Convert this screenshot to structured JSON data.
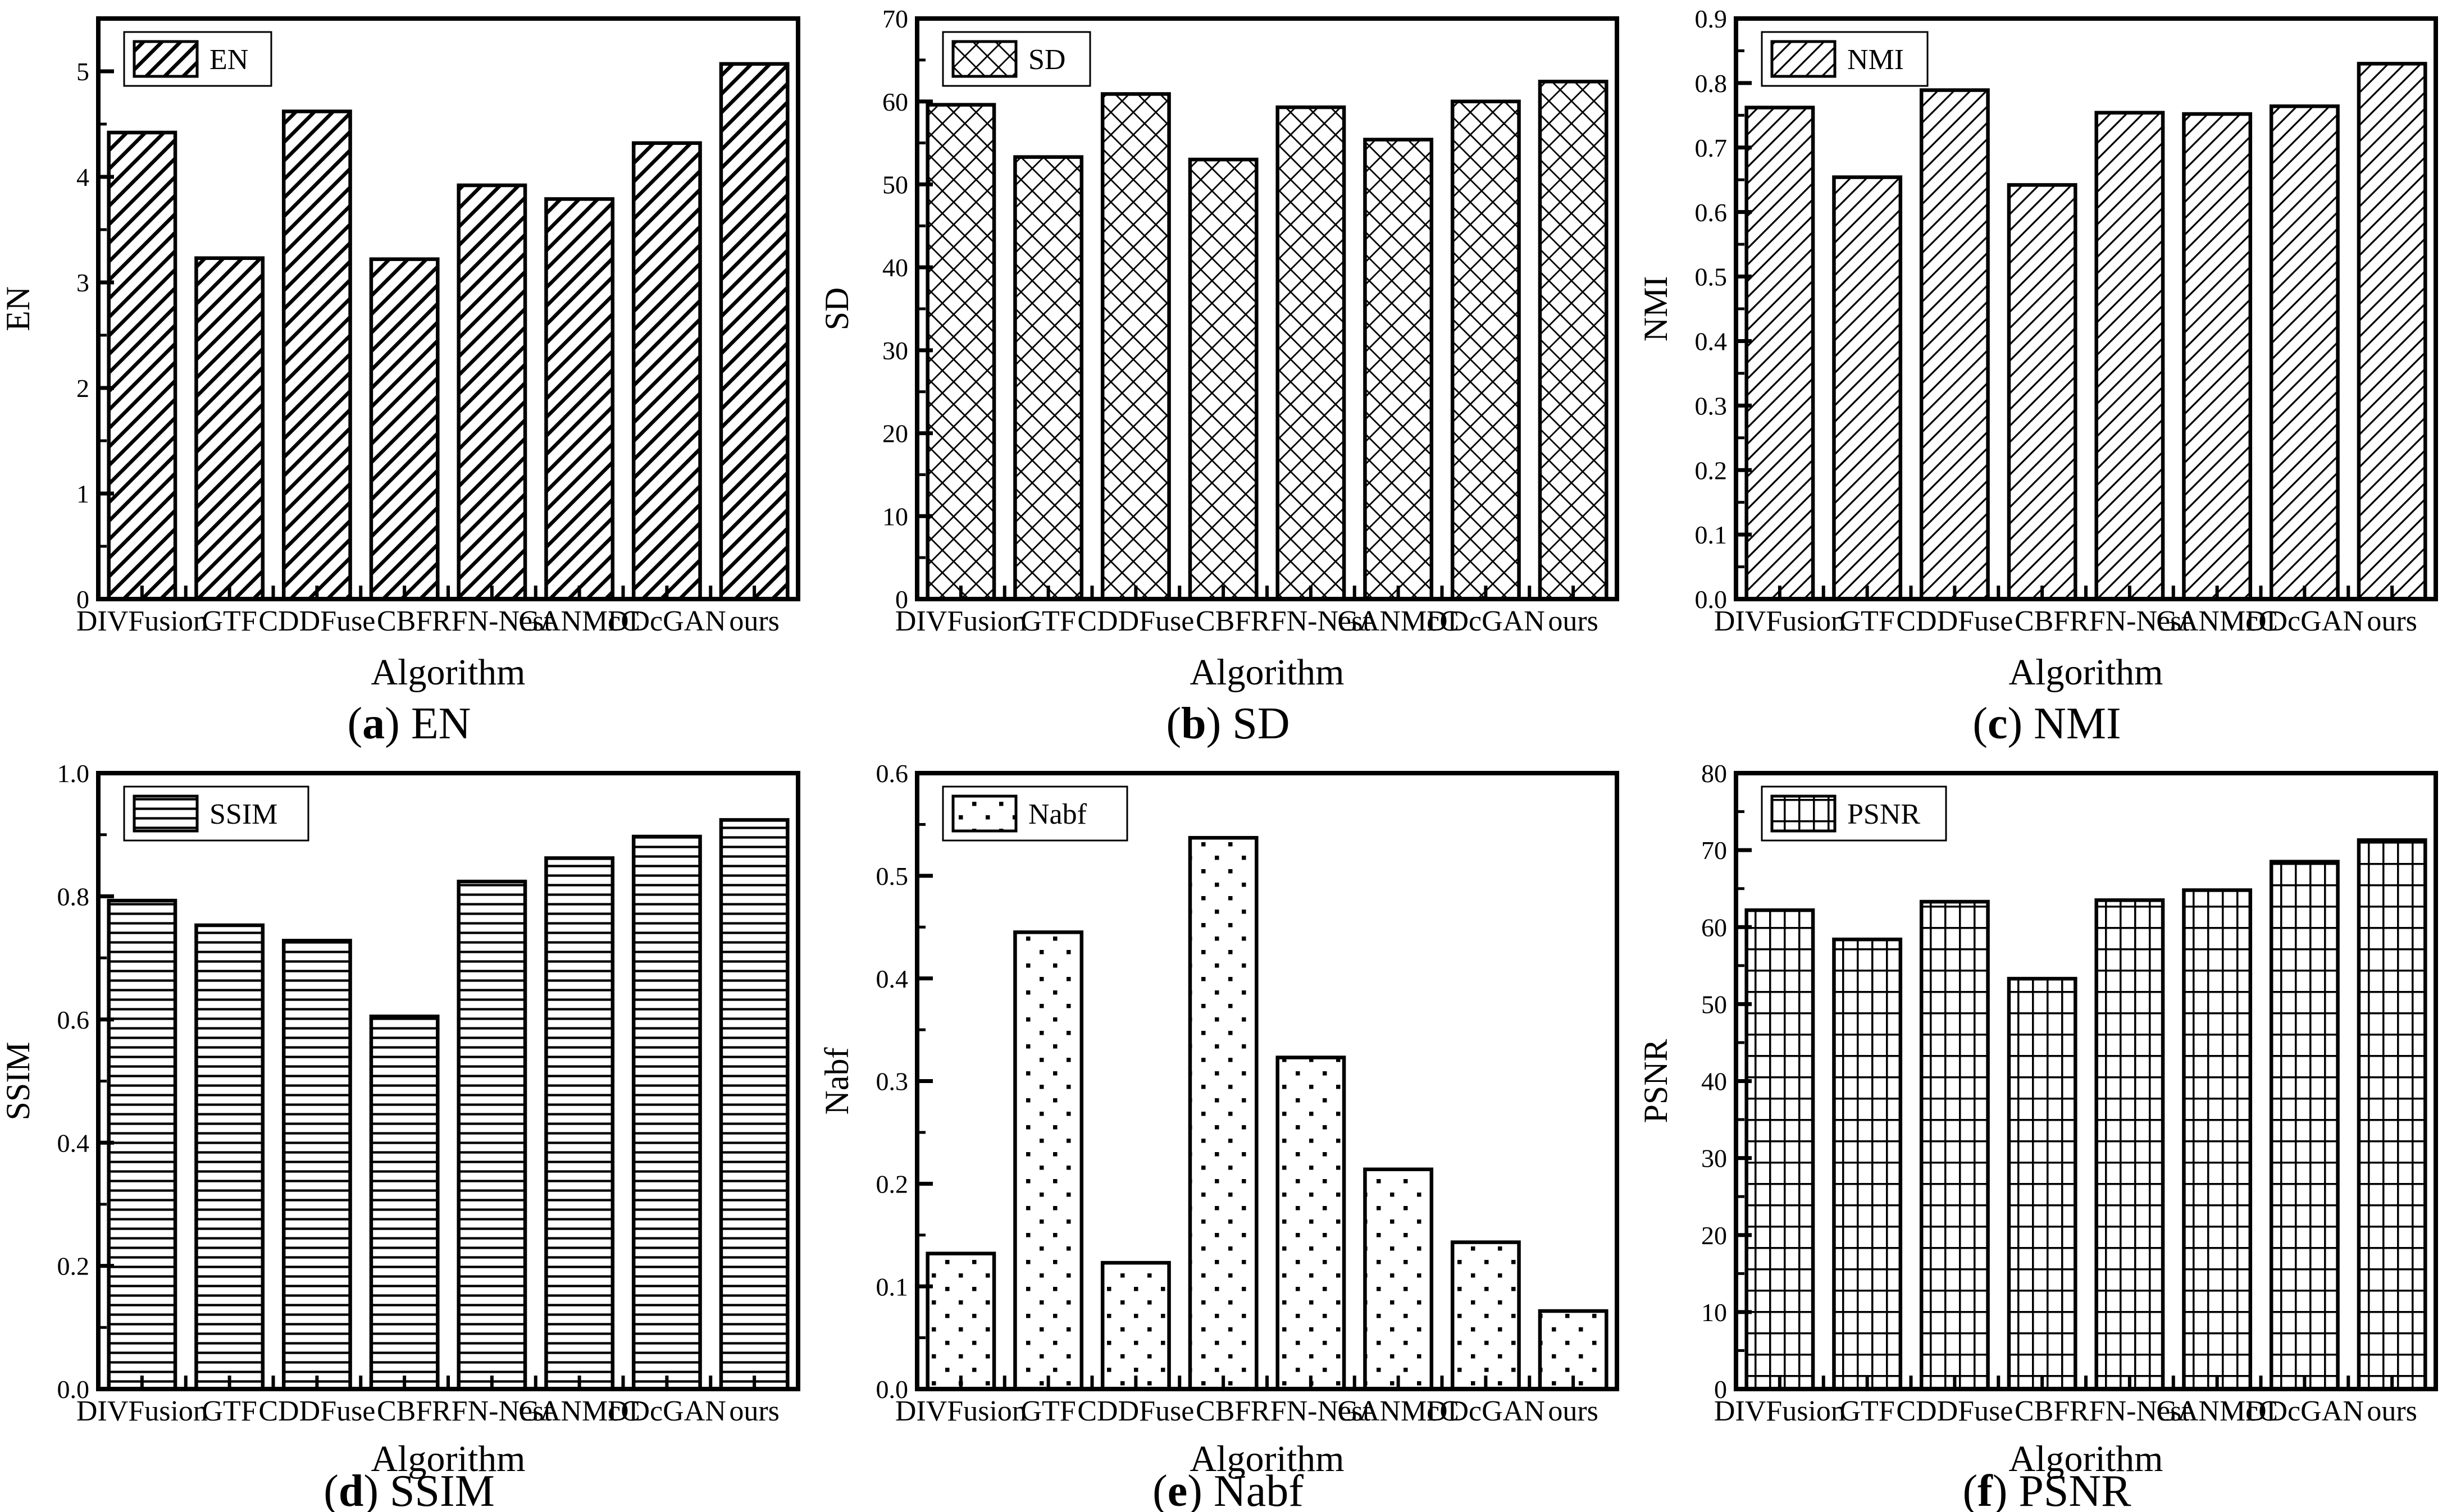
{
  "page": {
    "background": "#ffffff",
    "ink": "#000000",
    "figure_name": "fusion-metrics-comparison"
  },
  "chart_data": [
    {
      "type": "bar",
      "panel_letter": "a",
      "panel_name": "EN",
      "legend": "EN",
      "ylabel": "EN",
      "xlabel": "Algorithm",
      "hatch": "diagonal-thick",
      "legend_position": "top-left",
      "grid": false,
      "categories": [
        "DIVFusion",
        "GTF",
        "CDDFuse",
        "CBF",
        "RFN-Nest",
        "GANMcC",
        "DDcGAN",
        "ours"
      ],
      "values": [
        4.42,
        3.23,
        4.62,
        3.22,
        3.92,
        3.79,
        4.32,
        5.07
      ],
      "ylim": [
        0,
        5.5
      ],
      "ytick_step": 1,
      "yminor_step": 0.5,
      "ytick_decimals": 0
    },
    {
      "type": "bar",
      "panel_letter": "b",
      "panel_name": "SD",
      "legend": "SD",
      "ylabel": "SD",
      "xlabel": "Algorithm",
      "hatch": "cross",
      "legend_position": "top-left",
      "grid": false,
      "categories": [
        "DIVFusion",
        "GTF",
        "CDDFuse",
        "CBF",
        "RFN-Nest",
        "GANMcC",
        "DDcGAN",
        "ours"
      ],
      "values": [
        59.6,
        53.3,
        60.9,
        53.0,
        59.3,
        55.4,
        60.0,
        62.4
      ],
      "ylim": [
        0,
        70
      ],
      "ytick_step": 10,
      "yminor_step": 5,
      "ytick_decimals": 0
    },
    {
      "type": "bar",
      "panel_letter": "c",
      "panel_name": "NMI",
      "legend": "NMI",
      "ylabel": "NMI",
      "xlabel": "Algorithm",
      "hatch": "diagonal-thin",
      "legend_position": "top-left",
      "grid": false,
      "categories": [
        "DIVFusion",
        "GTF",
        "CDDFuse",
        "CBF",
        "RFN-Nest",
        "GANMcC",
        "DDcGAN",
        "ours"
      ],
      "values": [
        0.762,
        0.654,
        0.789,
        0.642,
        0.754,
        0.752,
        0.764,
        0.83
      ],
      "ylim": [
        0,
        0.9
      ],
      "ytick_step": 0.1,
      "yminor_step": 0.05,
      "ytick_decimals": 1
    },
    {
      "type": "bar",
      "panel_letter": "d",
      "panel_name": "SSIM",
      "legend": "SSIM",
      "ylabel": "SSIM",
      "xlabel": "Algorithm",
      "hatch": "horizontal",
      "legend_position": "top-left",
      "grid": false,
      "categories": [
        "DIVFusion",
        "GTF",
        "CDDFuse",
        "CBF",
        "RFN-Nest",
        "GANMcC",
        "DDcGAN",
        "ours"
      ],
      "values": [
        0.793,
        0.753,
        0.728,
        0.605,
        0.824,
        0.862,
        0.897,
        0.924
      ],
      "ylim": [
        0,
        1.0
      ],
      "ytick_step": 0.2,
      "yminor_step": 0.1,
      "ytick_decimals": 1
    },
    {
      "type": "bar",
      "panel_letter": "e",
      "panel_name": "Nabf",
      "legend": "Nabf",
      "ylabel": "Nabf",
      "xlabel": "Algorithm",
      "hatch": "dots",
      "legend_position": "top-left",
      "grid": false,
      "categories": [
        "DIVFusion",
        "GTF",
        "CDDFuse",
        "CBF",
        "RFN-Nest",
        "GANMcC",
        "DDcGAN",
        "ours"
      ],
      "values": [
        0.132,
        0.445,
        0.123,
        0.537,
        0.323,
        0.214,
        0.143,
        0.076
      ],
      "ylim": [
        0,
        0.6
      ],
      "ytick_step": 0.1,
      "yminor_step": 0.05,
      "ytick_decimals": 1
    },
    {
      "type": "bar",
      "panel_letter": "f",
      "panel_name": "PSNR",
      "legend": "PSNR",
      "ylabel": "PSNR",
      "xlabel": "Algorithm",
      "hatch": "grid",
      "legend_position": "top-left",
      "grid": false,
      "categories": [
        "DIVFusion",
        "GTF",
        "CDDFuse",
        "CBF",
        "RFN-Nest",
        "GANMcC",
        "DDcGAN",
        "ours"
      ],
      "values": [
        62.2,
        58.4,
        63.3,
        53.3,
        63.5,
        64.8,
        68.5,
        71.3
      ],
      "ylim": [
        0,
        80
      ],
      "ytick_step": 10,
      "yminor_step": 5,
      "ytick_decimals": 0
    }
  ]
}
